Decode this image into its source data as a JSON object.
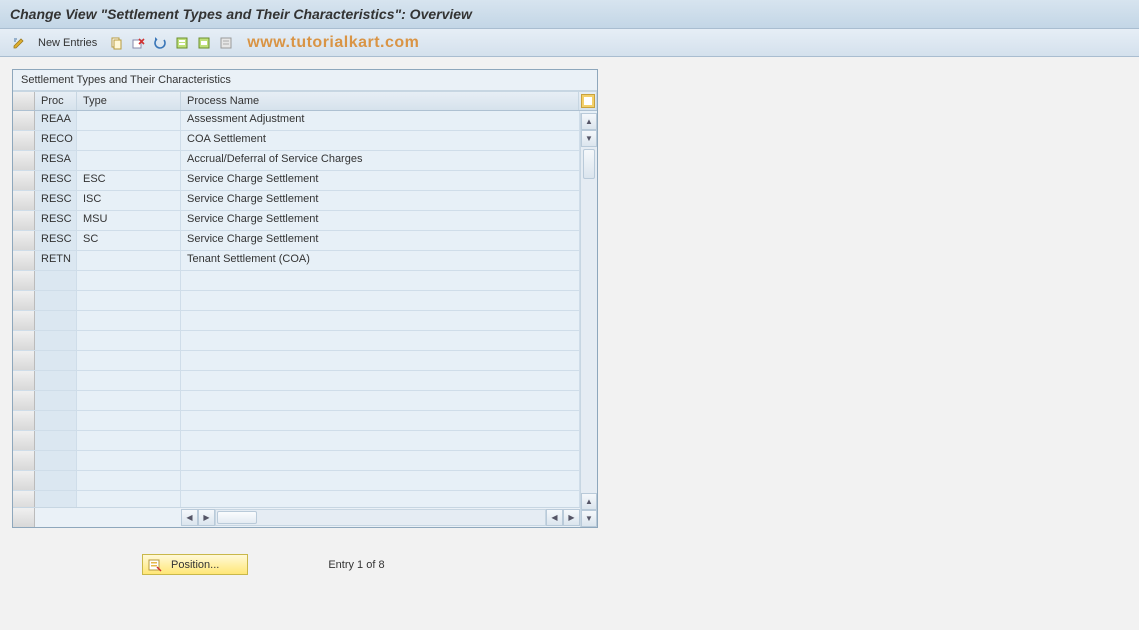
{
  "title": "Change View \"Settlement Types and Their Characteristics\": Overview",
  "toolbar": {
    "new_entries_label": "New Entries"
  },
  "watermark": "www.tutorialkart.com",
  "panel": {
    "title": "Settlement Types and Their Characteristics",
    "columns": {
      "proc": "Proc",
      "type": "Type",
      "name": "Process Name"
    },
    "rows": [
      {
        "proc": "REAA",
        "type": "",
        "name": "Assessment Adjustment"
      },
      {
        "proc": "RECO",
        "type": "",
        "name": "COA Settlement"
      },
      {
        "proc": "RESA",
        "type": "",
        "name": "Accrual/Deferral of Service Charges"
      },
      {
        "proc": "RESC",
        "type": "ESC",
        "name": "Service Charge Settlement"
      },
      {
        "proc": "RESC",
        "type": "ISC",
        "name": "Service Charge Settlement"
      },
      {
        "proc": "RESC",
        "type": "MSU",
        "name": "Service Charge Settlement"
      },
      {
        "proc": "RESC",
        "type": "SC",
        "name": "Service Charge Settlement"
      },
      {
        "proc": "RETN",
        "type": "",
        "name": "Tenant Settlement (COA)"
      }
    ],
    "empty_rows": 12
  },
  "footer": {
    "position_label": "Position...",
    "entry_text": "Entry 1 of 8"
  },
  "colors": {
    "title_grad_top": "#d7e4ef",
    "title_grad_bottom": "#c3d6e6",
    "panel_bg": "#eaf1f7",
    "row_bg": "#e7f0f7",
    "proc_bg": "#dbe7f1",
    "border": "#8ea7bc",
    "watermark": "#d99445",
    "position_btn_top": "#fff9d8",
    "position_btn_bottom": "#ffe777"
  }
}
